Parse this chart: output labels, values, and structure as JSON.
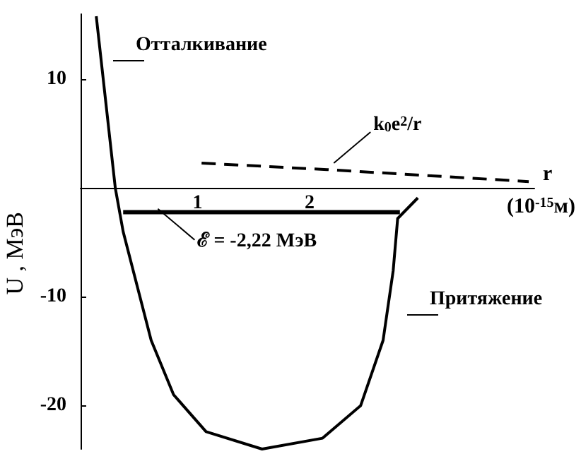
{
  "chart_data": {
    "type": "line",
    "xlabel": "r (10$^{-15}$м)",
    "ylabel": "U , МэВ",
    "xlim": [
      0,
      4.05
    ],
    "xticks": [
      1,
      2
    ],
    "ylim": [
      -24,
      16
    ],
    "yticks": [
      10,
      -10,
      -20
    ],
    "grid": false,
    "marker": "none",
    "series": [
      {
        "color": "#000000",
        "line_style": "solid",
        "x": [
          0.14,
          0.31,
          0.38,
          0.63,
          0.83,
          1.12,
          1.62,
          2.16,
          2.5,
          2.7,
          2.79,
          2.83,
          3.01
        ],
        "values": [
          15.8,
          0,
          -4,
          -14,
          -19,
          -22.4,
          -24,
          -23,
          -20,
          -14,
          -7.6,
          -2.8,
          -0.9
        ]
      },
      {
        "color": "#000000",
        "line_style": "solid",
        "x": [
          0.38,
          2.85
        ],
        "values": [
          -2.22,
          -2.22
        ]
      },
      {
        "color": "#000000",
        "line_style": "dashed",
        "x": [
          1.08,
          2.2,
          4.0
        ],
        "values": [
          2.3,
          1.7,
          0.6
        ]
      }
    ],
    "annotations": [
      "Отталкивание",
      {
        "text": "k$_{0}$e$^{2}$/r",
        "x": 2.26,
        "y": 2.3
      },
      {
        "text": "ℰ = -2,22 МэВ",
        "x": 0.69,
        "y": -1.9
      },
      "Притяжение"
    ]
  }
}
